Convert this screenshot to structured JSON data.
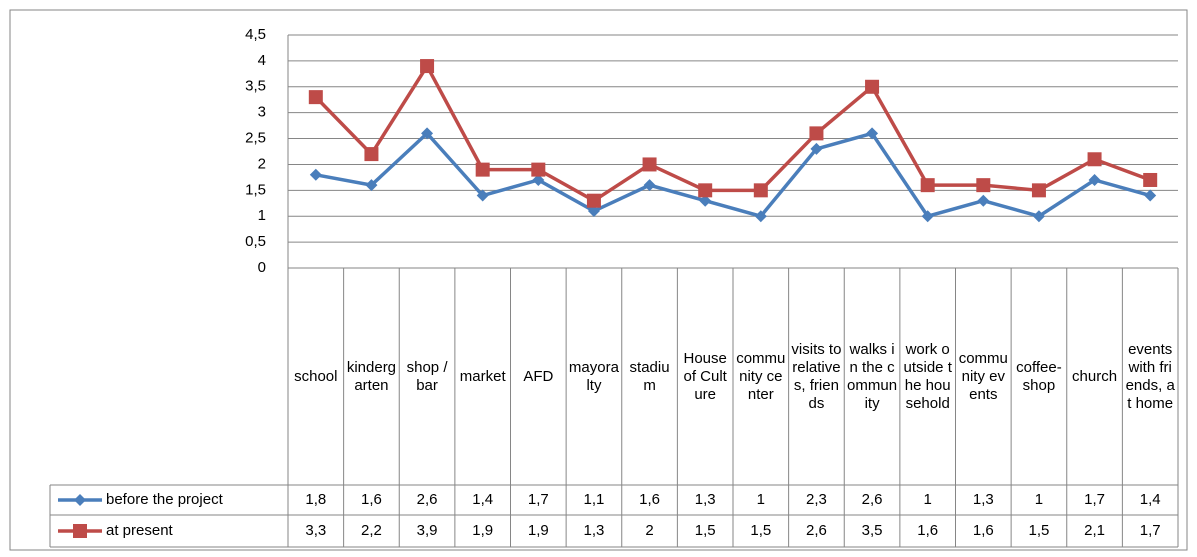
{
  "chart_data": {
    "type": "line",
    "categories": [
      "school",
      "kindergarten",
      "shop / bar",
      "market",
      "AFD",
      "mayoralty",
      "stadium",
      "House of Culture",
      "community center",
      "visits to relatives, friends",
      "walks in the community",
      "work outside the household",
      "community events",
      "coffee-shop",
      "church",
      "events with friends, at home"
    ],
    "series": [
      {
        "name": "before the project",
        "color": "#4a7ebb",
        "marker": "diamond",
        "values": [
          1.8,
          1.6,
          2.6,
          1.4,
          1.7,
          1.1,
          1.6,
          1.3,
          1,
          2.3,
          2.6,
          1,
          1.3,
          1,
          1.7,
          1.4
        ],
        "value_labels": [
          "1,8",
          "1,6",
          "2,6",
          "1,4",
          "1,7",
          "1,1",
          "1,6",
          "1,3",
          "1",
          "2,3",
          "2,6",
          "1",
          "1,3",
          "1",
          "1,7",
          "1,4"
        ]
      },
      {
        "name": "at present",
        "color": "#be4b48",
        "marker": "square",
        "values": [
          3.3,
          2.2,
          3.9,
          1.9,
          1.9,
          1.3,
          2,
          1.5,
          1.5,
          2.6,
          3.5,
          1.6,
          1.6,
          1.5,
          2.1,
          1.7
        ],
        "value_labels": [
          "3,3",
          "2,2",
          "3,9",
          "1,9",
          "1,9",
          "1,3",
          "2",
          "1,5",
          "1,5",
          "2,6",
          "3,5",
          "1,6",
          "1,6",
          "1,5",
          "2,1",
          "1,7"
        ]
      }
    ],
    "ylim": [
      0,
      4.5
    ],
    "yticks": [
      0,
      {
        "value": 0.5,
        "label": "0,5"
      },
      1,
      {
        "value": 1.5,
        "label": "1,5"
      },
      2,
      {
        "value": 2.5,
        "label": "2,5"
      },
      3,
      {
        "value": 3.5,
        "label": "3,5"
      },
      4,
      {
        "value": 4.5,
        "label": "4,5"
      }
    ],
    "grid": true,
    "legend": "data-table"
  }
}
